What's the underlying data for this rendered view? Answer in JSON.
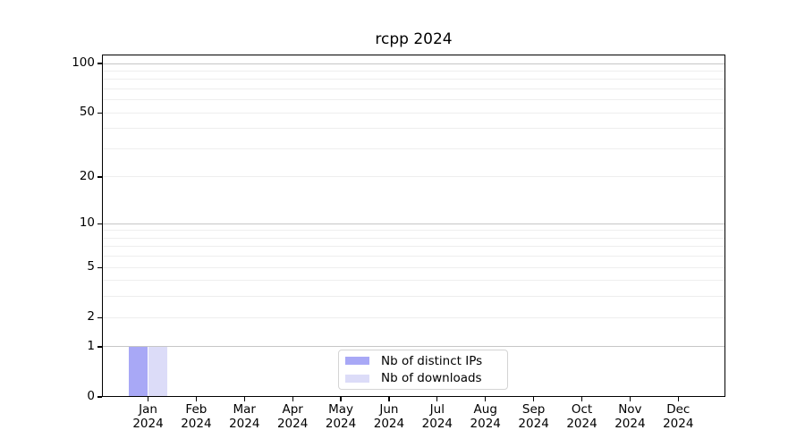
{
  "figure": {
    "background": "#ffffff"
  },
  "chart_data": {
    "type": "bar",
    "title": "rcpp 2024",
    "categories": [
      "Jan",
      "Feb",
      "Mar",
      "Apr",
      "May",
      "Jun",
      "Jul",
      "Aug",
      "Sep",
      "Oct",
      "Nov",
      "Dec"
    ],
    "category_year": "2024",
    "series": [
      {
        "name": "Nb of distinct IPs",
        "color": "#a8a8f6",
        "values": [
          1,
          0,
          0,
          0,
          0,
          0,
          0,
          0,
          0,
          0,
          0,
          0
        ]
      },
      {
        "name": "Nb of downloads",
        "color": "#dcdcf8",
        "values": [
          1,
          0,
          0,
          0,
          0,
          0,
          0,
          0,
          0,
          0,
          0,
          0
        ]
      }
    ],
    "yscale": "log1p",
    "ylim": [
      0,
      114
    ],
    "y_tick_labels": [
      0,
      1,
      2,
      5,
      10,
      20,
      50,
      100
    ],
    "y_gridlines_major": [
      1,
      10,
      100
    ],
    "y_gridlines_minor": [
      2,
      3,
      4,
      5,
      6,
      7,
      8,
      9,
      20,
      30,
      40,
      50,
      60,
      70,
      80,
      90
    ],
    "xlabel": "",
    "ylabel": "",
    "grid": true,
    "legend_position": "bottom-center"
  },
  "colors": {
    "axis": "#000000",
    "grid_major": "#c6c6c6",
    "grid_minor": "#eeeeee",
    "legend_border": "#d4d4d4"
  }
}
